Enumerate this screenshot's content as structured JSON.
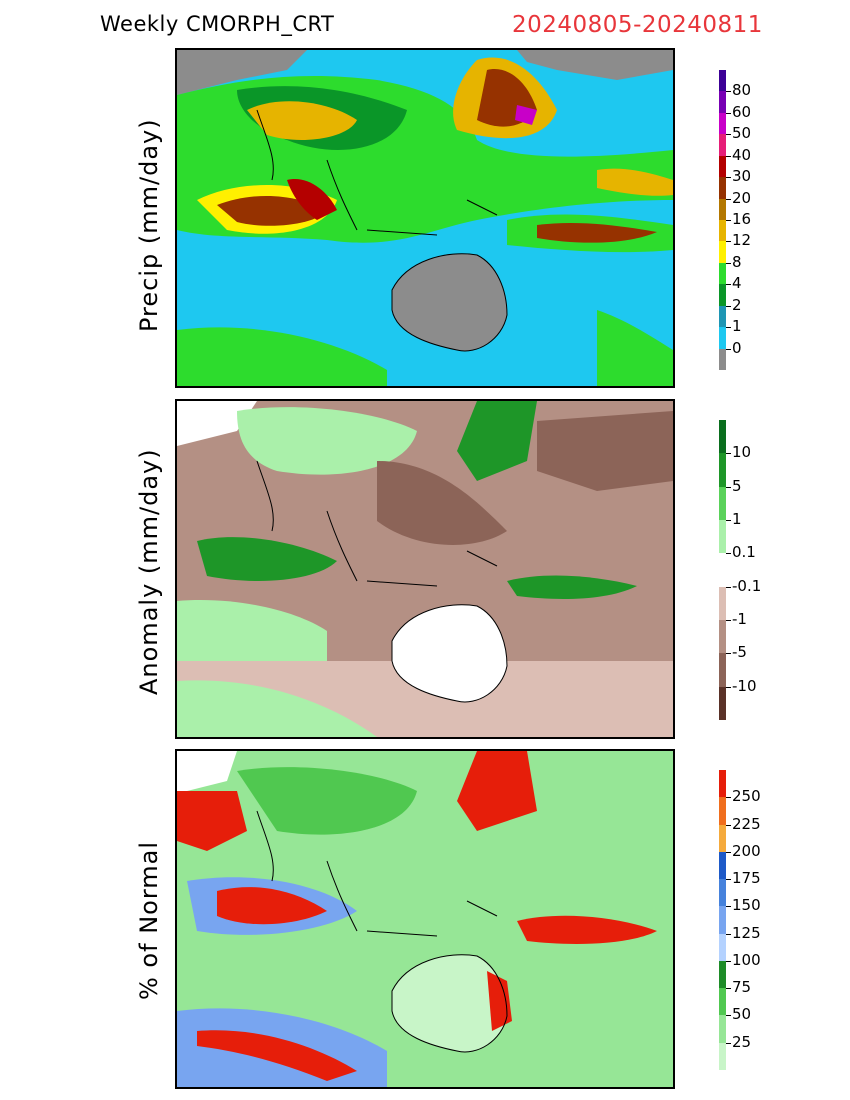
{
  "header": {
    "title": "Weekly CMORPH_CRT",
    "dates": "20240805-20240811"
  },
  "panels": [
    {
      "id": "precip",
      "ylabel": "Precip (mm/day)",
      "colorbar": {
        "colors": [
          "#8c8c8c",
          "#1ec8f0",
          "#1e96b4",
          "#0a9628",
          "#2ddc2d",
          "#fff000",
          "#e6b400",
          "#b47800",
          "#963200",
          "#b40000",
          "#e61e78",
          "#c800c8",
          "#7800b4",
          "#3c0096"
        ],
        "labels": [
          "0",
          "1",
          "2",
          "4",
          "8",
          "12",
          "16",
          "20",
          "30",
          "40",
          "50",
          "60",
          "80"
        ]
      }
    },
    {
      "id": "anomaly",
      "ylabel": "Anomaly (mm/day)",
      "colorbar": {
        "colors": [
          "#5a3228",
          "#8c6458",
          "#b49084",
          "#dcbeb4",
          "#ffffff",
          "#aaf0aa",
          "#5ad25a",
          "#1e9628",
          "#0a6e1e"
        ],
        "labels": [
          "-10",
          "-5",
          "-1",
          "-0.1",
          "0.1",
          "1",
          "5",
          "10"
        ]
      }
    },
    {
      "id": "pct",
      "ylabel": "% of Normal",
      "colorbar": {
        "colors": [
          "#c8f5c8",
          "#96e696",
          "#50c850",
          "#1e8c28",
          "#b4d2ff",
          "#78a5f0",
          "#4682dc",
          "#1e5ac8",
          "#f5aa3c",
          "#f06e1e",
          "#e61e0a"
        ],
        "labels": [
          "25",
          "50",
          "75",
          "100",
          "125",
          "150",
          "175",
          "200",
          "225",
          "250"
        ]
      }
    }
  ]
}
